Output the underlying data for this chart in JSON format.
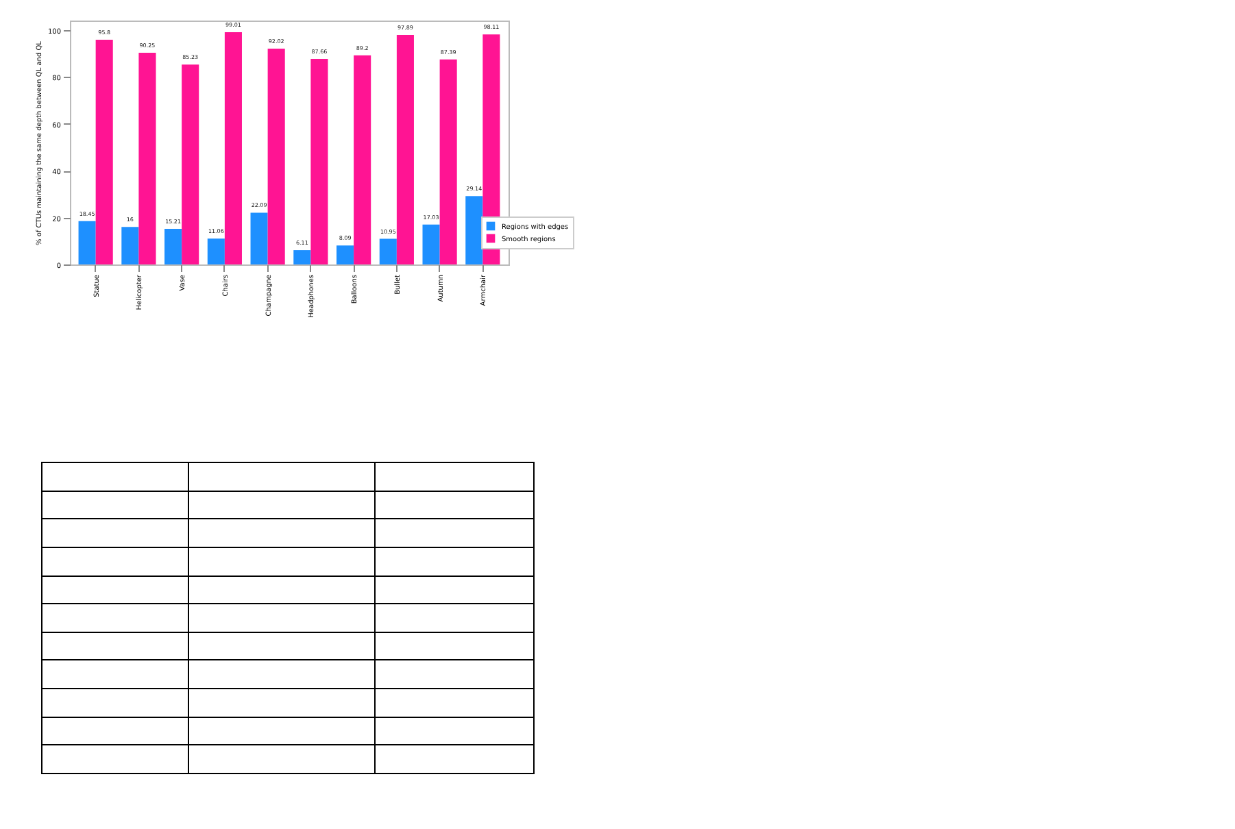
{
  "chart_data": {
    "type": "bar",
    "ylabel": "% of CTUs maintaining the same depth between QL and QL",
    "categories": [
      "Statue",
      "Helicopter",
      "Vase",
      "Chairs",
      "Champagne",
      "Headphones",
      "Balloons",
      "Bullet",
      "Autumn",
      "Armchair"
    ],
    "series": [
      {
        "name": "Regions with edges",
        "color": "#1e90ff",
        "values": [
          18.45,
          16.0,
          15.21,
          11.06,
          22.09,
          6.11,
          8.09,
          10.95,
          17.03,
          29.14
        ]
      },
      {
        "name": "Smooth regions",
        "color": "#ff1493",
        "values": [
          95.8,
          90.25,
          85.23,
          99.01,
          92.02,
          87.66,
          89.2,
          97.89,
          87.39,
          98.11
        ]
      }
    ],
    "ylim": [
      0,
      104
    ],
    "yticks": [
      0,
      20,
      40,
      60,
      80,
      100
    ],
    "grid": false,
    "legend": "bottom right",
    "data_labels": true
  }
}
